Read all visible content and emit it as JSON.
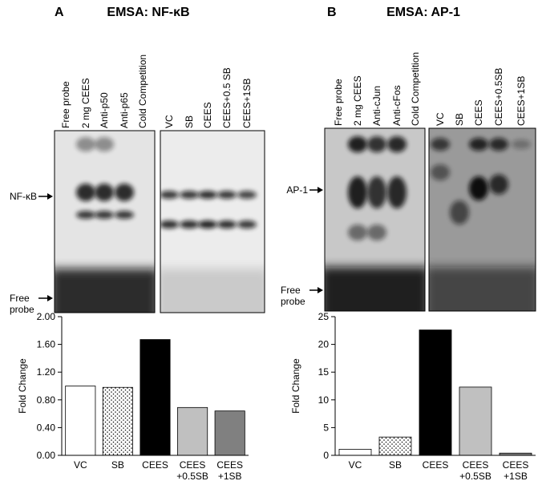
{
  "panels": [
    {
      "label": "A",
      "title": "EMSA: NF-κB",
      "lanes_left": [
        "Free probe",
        "2 mg CEES",
        "Anti-p50",
        "Anti-p65",
        "Cold Competition"
      ],
      "lanes_right": [
        "VC",
        "SB",
        "CEES",
        "CEES+0.5 SB",
        "CEES+1SB"
      ],
      "band_label": "NF-κB",
      "probe_label": "Free\nprobe"
    },
    {
      "label": "B",
      "title": "EMSA: AP-1",
      "lanes_left": [
        "Free probe",
        "2 mg CEES",
        "Anti-cJun",
        "Anti-cFos",
        "Cold Competition"
      ],
      "lanes_right": [
        "VC",
        "SB",
        "CEES",
        "CEES+0.5SB",
        "CEES+1SB"
      ],
      "band_label": "AP-1",
      "probe_label": "Free\nprobe"
    }
  ],
  "chart_data": [
    {
      "type": "bar",
      "ylabel": "Fold Change",
      "categories": [
        "VC",
        "SB",
        "CEES",
        "CEES\n+0.5SB",
        "CEES\n+1SB"
      ],
      "values": [
        1.0,
        0.98,
        1.67,
        0.69,
        0.64
      ],
      "colors": [
        "#ffffff",
        "url(#dots)",
        "#000000",
        "#c0c0c0",
        "#808080"
      ],
      "ylim": [
        0,
        2
      ],
      "yticks": [
        {
          "value": 0,
          "label": "0.00"
        },
        {
          "value": 0.4,
          "label": "0.40"
        },
        {
          "value": 0.8,
          "label": "0.80"
        },
        {
          "value": 1.2,
          "label": "1.20"
        },
        {
          "value": 1.6,
          "label": "1.60"
        },
        {
          "value": 2,
          "label": "2.00"
        }
      ]
    },
    {
      "type": "bar",
      "ylabel": "Fold Change",
      "categories": [
        "VC",
        "SB",
        "CEES",
        "CEES\n+0.5SB",
        "CEES\n+1SB"
      ],
      "values": [
        1.1,
        3.3,
        22.6,
        12.3,
        0.4
      ],
      "colors": [
        "#ffffff",
        "url(#dots)",
        "#000000",
        "#c0c0c0",
        "#808080"
      ],
      "ylim": [
        0,
        25
      ],
      "yticks": [
        0,
        5,
        10,
        15,
        20,
        25
      ]
    }
  ]
}
